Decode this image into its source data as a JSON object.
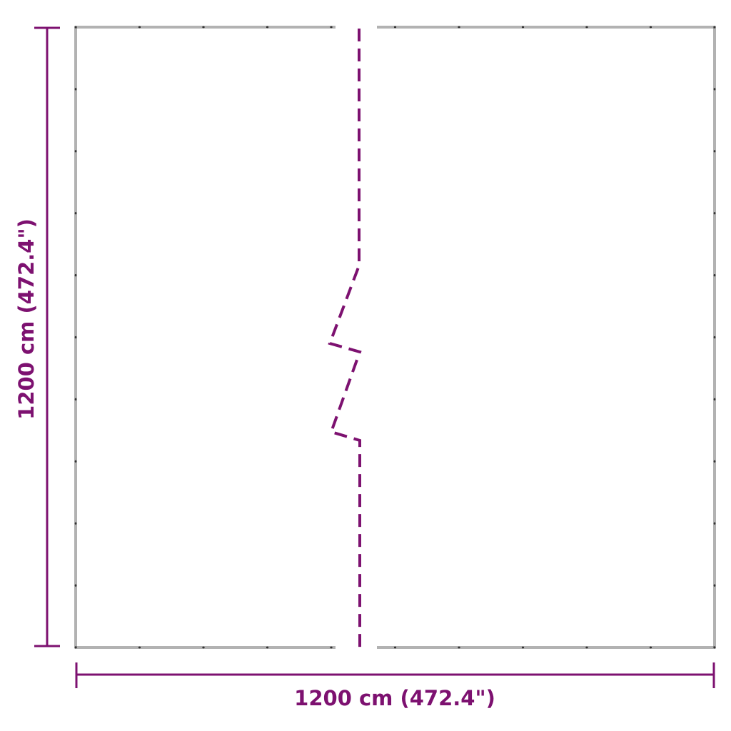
{
  "dimensions": {
    "width_label": "1200 cm (472.4\")",
    "height_label": "1200 cm (472.4\")"
  },
  "colors": {
    "dimension": "#7d1170",
    "frame": "#555555"
  }
}
